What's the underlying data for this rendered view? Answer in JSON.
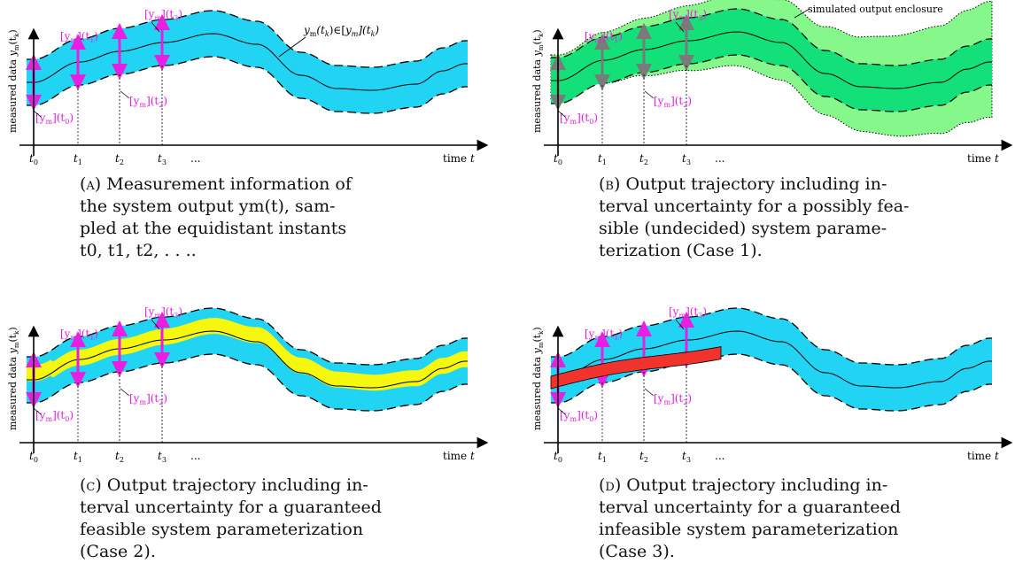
{
  "colors": {
    "band": "#22d4f4",
    "arrow": "#e61fe0",
    "gray_arrow": "#7a7a7a",
    "green_inner": "#14e07a",
    "green_outer": "#86f78a",
    "yellow": "#f6f70f",
    "red": "#f2322c"
  },
  "common": {
    "y_axis_label": "measured data",
    "x_axis_label": "time",
    "x_axis_var": "t",
    "ticks": [
      "t0",
      "t1",
      "t2",
      "t3",
      "..."
    ],
    "interval_label": "[ym](tk)"
  },
  "panels": [
    {
      "id": "a",
      "extra_label": "ym(tk)∈[ym](tk)",
      "caption": {
        "label": "(a)",
        "lines": [
          "Measurement information of",
          "the system output ym(t), sam-",
          "pled at the equidistant instants",
          "t0, t1, t2, . . .."
        ]
      }
    },
    {
      "id": "b",
      "extra_label": "simulated output enclosure",
      "caption": {
        "label": "(b)",
        "lines": [
          "Output trajectory including in-",
          "terval uncertainty for a possibly fea-",
          "sible (undecided) system parame-",
          "terization (Case 1)."
        ]
      }
    },
    {
      "id": "c",
      "extra_label": "",
      "caption": {
        "label": "(c)",
        "lines": [
          "Output trajectory including in-",
          "terval uncertainty for a guaranteed",
          "feasible system parameterization",
          "(Case 2)."
        ]
      }
    },
    {
      "id": "d",
      "extra_label": "",
      "caption": {
        "label": "(d)",
        "lines": [
          "Output trajectory including in-",
          "terval uncertainty for a guaranteed",
          "infeasible system parameterization",
          "(Case 3)."
        ]
      }
    }
  ]
}
